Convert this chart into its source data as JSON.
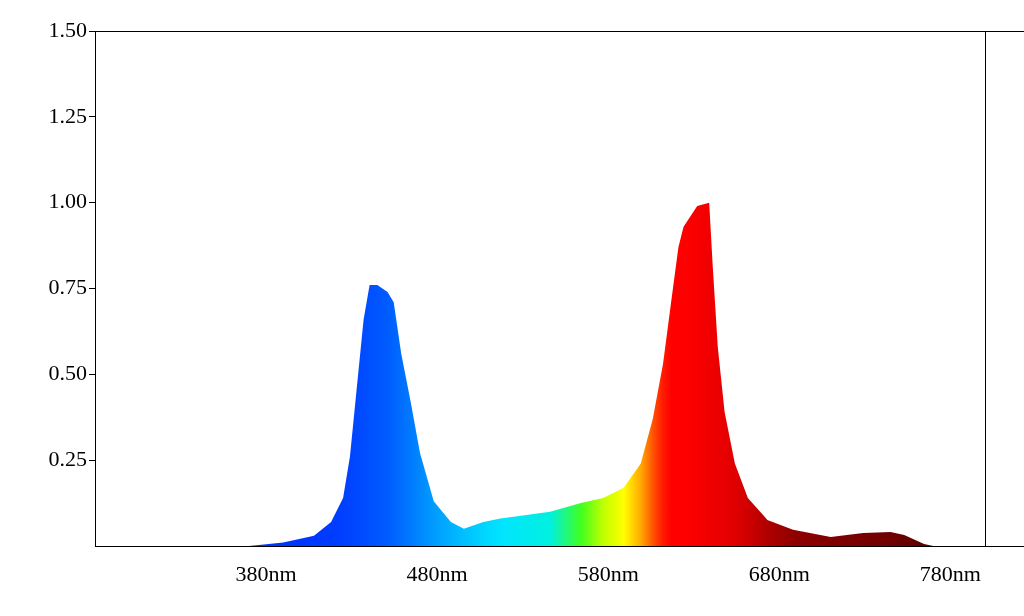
{
  "chart_data": {
    "type": "area",
    "x": [
      280,
      370,
      390,
      408,
      418,
      425,
      429,
      433,
      437,
      440.5,
      445,
      451,
      454.6,
      459,
      464.5,
      470,
      478,
      488,
      495.6,
      507,
      517,
      546,
      564,
      577,
      589,
      599,
      606,
      612,
      617,
      621,
      624,
      632,
      639,
      641,
      644,
      648,
      654,
      661.6,
      673,
      688,
      710,
      729,
      745,
      753,
      764.6,
      770
    ],
    "values": [
      0,
      0,
      0.01,
      0.03,
      0.07,
      0.14,
      0.26,
      0.46,
      0.66,
      0.76,
      0.76,
      0.74,
      0.71,
      0.56,
      0.42,
      0.27,
      0.13,
      0.07,
      0.05,
      0.07,
      0.08,
      0.1,
      0.125,
      0.14,
      0.17,
      0.24,
      0.37,
      0.53,
      0.72,
      0.87,
      0.93,
      0.99,
      1.0,
      0.82,
      0.58,
      0.39,
      0.24,
      0.14,
      0.076,
      0.047,
      0.026,
      0.038,
      0.041,
      0.032,
      0.006,
      0
    ],
    "colors": [
      "#0033ff",
      "#0033ff",
      "#0035ff",
      "#0038ff",
      "#003cff",
      "#0040ff",
      "#0044ff",
      "#0048ff",
      "#004cff",
      "#0050ff",
      "#0055ff",
      "#005cff",
      "#0064ff",
      "#006eff",
      "#007aff",
      "#0088ff",
      "#009cff",
      "#00b0ff",
      "#00c0ff",
      "#00d4ff",
      "#00e4ff",
      "#00f0e0",
      "#40ff20",
      "#c0ff00",
      "#ffff00",
      "#ffaa00",
      "#ff5500",
      "#ff1a00",
      "#ff0000",
      "#ff0000",
      "#ff0000",
      "#f80000",
      "#f00000",
      "#ee0000",
      "#eb0000",
      "#e80000",
      "#e00000",
      "#d00000",
      "#b00000",
      "#900000",
      "#800000",
      "#780000",
      "#700000",
      "#680000",
      "#600000",
      "#600000"
    ],
    "xlim": [
      280,
      823
    ],
    "xticks": [
      {
        "value": 380,
        "label": "380nm"
      },
      {
        "value": 480,
        "label": "480nm"
      },
      {
        "value": 580,
        "label": "580nm"
      },
      {
        "value": 680,
        "label": "680nm"
      },
      {
        "value": 780,
        "label": "780nm"
      }
    ],
    "ylim": [
      0,
      1.5
    ],
    "yticks": [
      {
        "value": 0.25,
        "label": "0.25"
      },
      {
        "value": 0.5,
        "label": "0.50"
      },
      {
        "value": 0.75,
        "label": "0.75"
      },
      {
        "value": 1,
        "label": "1.00"
      },
      {
        "value": 1.25,
        "label": "1.25"
      },
      {
        "value": 1.5,
        "label": "1.50"
      }
    ],
    "ref_lines": [
      {
        "axis": "x",
        "value": 800
      }
    ]
  }
}
